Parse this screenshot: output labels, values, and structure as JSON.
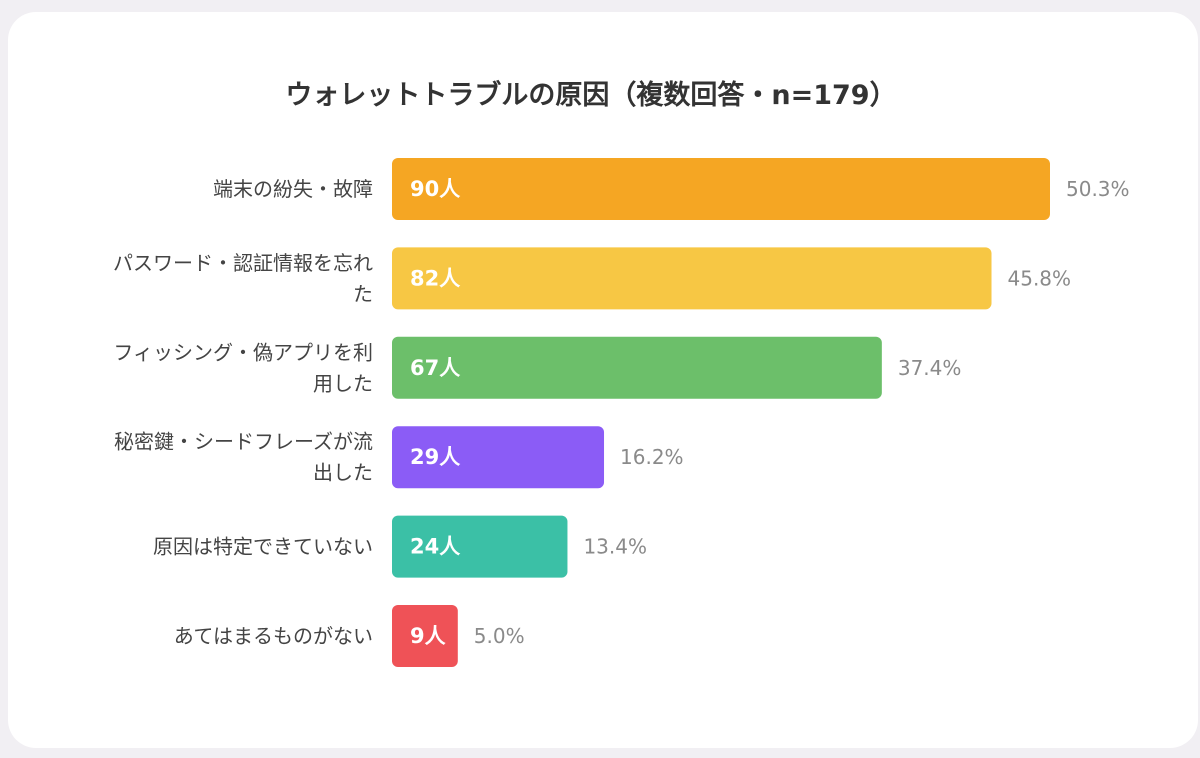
{
  "chart_data": {
    "type": "bar",
    "orientation": "horizontal",
    "title": "ウォレットトラブルの原因（複数回答・n=179）",
    "categories": [
      [
        "端末の紛失・故障"
      ],
      [
        "パスワード・認証情報を忘れ",
        "た"
      ],
      [
        "フィッシング・偽アプリを利",
        "用した"
      ],
      [
        "秘密鍵・シードフレーズが流",
        "出した"
      ],
      [
        "原因は特定できていない"
      ],
      [
        "あてはまるものがない"
      ]
    ],
    "values": [
      90,
      82,
      67,
      29,
      24,
      9
    ],
    "value_labels": [
      "90人",
      "82人",
      "67人",
      "29人",
      "24人",
      "9人"
    ],
    "percent_labels": [
      "50.3%",
      "45.8%",
      "37.4%",
      "16.2%",
      "13.4%",
      "5.0%"
    ],
    "colors": [
      "#f5a623",
      "#f7c744",
      "#6cbf6a",
      "#8b5cf6",
      "#3bc0a6",
      "#ef5257"
    ],
    "xlim": [
      0,
      90
    ],
    "grid": false,
    "legend": "none"
  }
}
